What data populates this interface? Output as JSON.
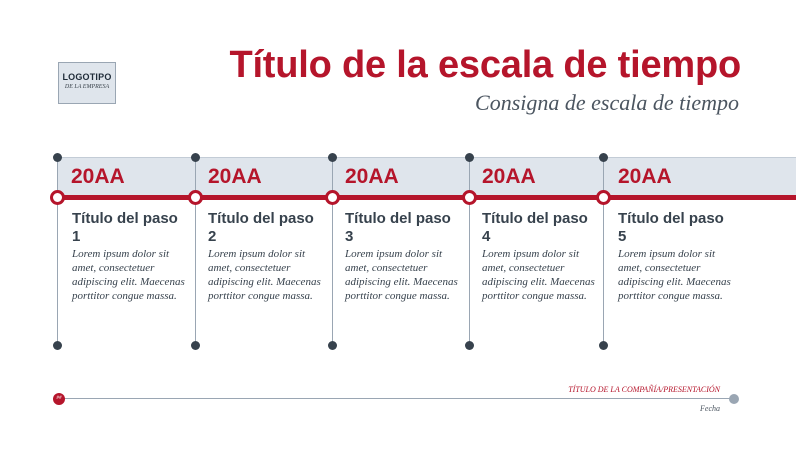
{
  "logo": {
    "line1": "LOGOTIPO",
    "line2": "DE LA EMPRESA"
  },
  "header": {
    "title": "Título de la escala de tiempo",
    "subtitle": "Consigna de escala de tiempo"
  },
  "steps": [
    {
      "year": "20AA",
      "title": "Título del paso 1",
      "body": "Lorem ipsum dolor sit amet, consectetuer adipiscing elit. Maecenas porttitor congue massa."
    },
    {
      "year": "20AA",
      "title": "Título del paso 2",
      "body": "Lorem ipsum dolor sit amet, consectetuer adipiscing elit. Maecenas porttitor congue massa."
    },
    {
      "year": "20AA",
      "title": "Título del paso 3",
      "body": "Lorem ipsum dolor sit amet, consectetuer adipiscing elit. Maecenas porttitor congue massa."
    },
    {
      "year": "20AA",
      "title": "Título del paso 4",
      "body": "Lorem ipsum dolor sit amet, consectetuer adipiscing elit. Maecenas porttitor congue massa."
    },
    {
      "year": "20AA",
      "title": "Título del paso 5",
      "body": "Lorem ipsum dolor sit amet, consectetuer adipiscing elit. Maecenas porttitor congue massa."
    }
  ],
  "footer": {
    "page_number": "##",
    "company": "TÍTULO DE LA COMPAÑÍA/PRESENTACIÓN",
    "date": "Fecha"
  },
  "colors": {
    "accent": "#b5152b",
    "band": "#dfe5ec",
    "text": "#37424d"
  }
}
